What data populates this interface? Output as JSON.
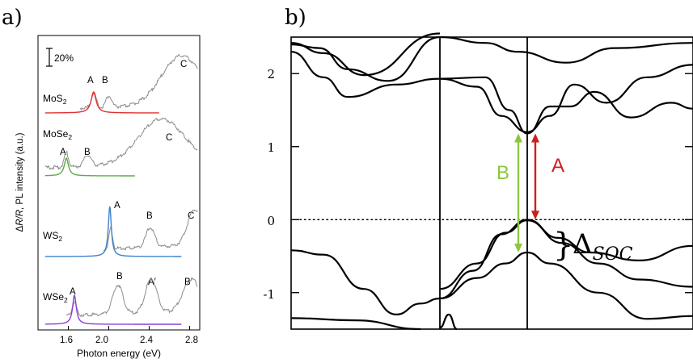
{
  "panel_a": {
    "label": "a)",
    "scale_bar": "20%",
    "ylabel_pre": "Δ",
    "ylabel_italic": "R/R",
    "ylabel_post": ", PL intensity (a.u.)",
    "colors": {
      "reflectance": "#8c8c8c",
      "MoS2": "#e0312f",
      "MoSe2": "#5caa46",
      "WS2": "#3c82cc",
      "WSe2": "#8a3fd6"
    }
  },
  "panel_b": {
    "label": "b)",
    "arrow_B_label": "B",
    "arrow_A_label": "A",
    "delta_symbol": "Δ",
    "delta_subscript": "SOC",
    "colors": {
      "arrow_B": "#8cc63f",
      "arrow_A": "#cc1f1f",
      "bands": "#000000"
    }
  },
  "chart_data": [
    {
      "type": "line",
      "xlabel": "Photon energy (eV)",
      "ylabel": "ΔR/R, PL intensity (a.u.)",
      "xlim": [
        1.3,
        2.9
      ],
      "xticks": [
        "1.6",
        "2.0",
        "2.4",
        "2.8"
      ],
      "series": [
        {
          "name": "MoS2",
          "name_main": "MoS",
          "name_sub": "2",
          "peaks": [
            {
              "label": "A",
              "energy": 1.86
            },
            {
              "label": "B",
              "energy": 2.0
            },
            {
              "label": "C",
              "energy": 2.8
            }
          ],
          "pl_peak": 1.85
        },
        {
          "name": "MoSe2",
          "name_main": "MoSe",
          "name_sub": "2",
          "peaks": [
            {
              "label": "A",
              "energy": 1.58
            },
            {
              "label": "B",
              "energy": 1.79
            },
            {
              "label": "C",
              "energy": 2.55
            }
          ],
          "pl_peak": 1.58
        },
        {
          "name": "WS2",
          "name_main": "WS",
          "name_sub": "2",
          "peaks": [
            {
              "label": "A",
              "energy": 2.02
            },
            {
              "label": "B",
              "energy": 2.41
            },
            {
              "label": "C",
              "energy": 2.84
            }
          ],
          "pl_peak": 2.01
        },
        {
          "name": "WSe2",
          "name_main": "WSe",
          "name_sub": "2",
          "peaks": [
            {
              "label": "A",
              "energy": 1.66
            },
            {
              "label": "B",
              "energy": 2.09
            },
            {
              "label": "A′",
              "energy": 2.42
            },
            {
              "label": "B′",
              "energy": 2.8
            }
          ],
          "pl_peak": 1.66
        }
      ]
    },
    {
      "type": "line",
      "ylim": [
        -1.5,
        2.5
      ],
      "yticks": [
        "2",
        "1",
        "0",
        "-1"
      ],
      "ytick_values": [
        2,
        1,
        0,
        -1
      ],
      "fermi_level": 0,
      "arrow_B": {
        "from": -0.45,
        "to": 1.18
      },
      "arrow_A": {
        "from": 0.0,
        "to": 1.18
      },
      "delta_soc": {
        "upper": 0.0,
        "lower": -0.45
      }
    }
  ]
}
